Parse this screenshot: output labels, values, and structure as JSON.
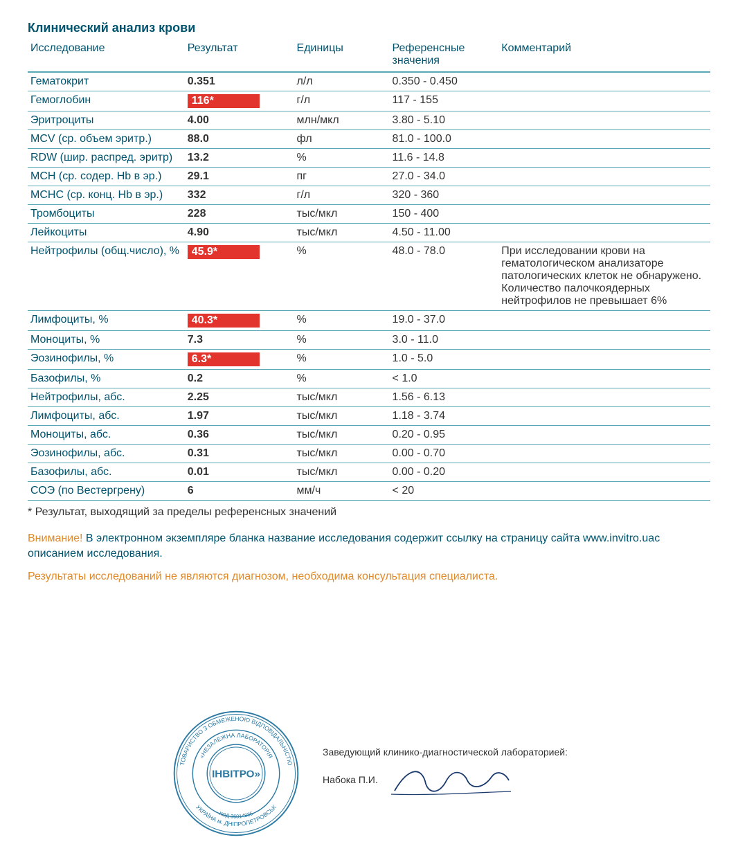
{
  "title": "Клинический анализ крови",
  "columns": [
    "Исследование",
    "Результат",
    "Единицы",
    "Референсные значения",
    "Комментарий"
  ],
  "rows": [
    {
      "test": "Гематокрит",
      "result": "0.351",
      "flag": false,
      "units": "л/л",
      "ref": "0.350 - 0.450",
      "comment": ""
    },
    {
      "test": "Гемоглобин",
      "result": "116*",
      "flag": true,
      "units": "г/л",
      "ref": "117 - 155",
      "comment": ""
    },
    {
      "test": "Эритроциты",
      "result": "4.00",
      "flag": false,
      "units": "млн/мкл",
      "ref": "3.80 - 5.10",
      "comment": ""
    },
    {
      "test": "MCV (ср. объем эритр.)",
      "result": "88.0",
      "flag": false,
      "units": "фл",
      "ref": "81.0 - 100.0",
      "comment": ""
    },
    {
      "test": "RDW (шир. распред. эритр)",
      "result": "13.2",
      "flag": false,
      "units": "%",
      "ref": "11.6 - 14.8",
      "comment": ""
    },
    {
      "test": "MCH (ср. содер. Hb в эр.)",
      "result": "29.1",
      "flag": false,
      "units": "пг",
      "ref": "27.0 - 34.0",
      "comment": ""
    },
    {
      "test": "MCHC (ср. конц. Hb в эр.)",
      "result": "332",
      "flag": false,
      "units": "г/л",
      "ref": "320 - 360",
      "comment": ""
    },
    {
      "test": "Тромбоциты",
      "result": "228",
      "flag": false,
      "units": "тыс/мкл",
      "ref": "150 - 400",
      "comment": ""
    },
    {
      "test": "Лейкоциты",
      "result": "4.90",
      "flag": false,
      "units": "тыс/мкл",
      "ref": "4.50 - 11.00",
      "comment": ""
    },
    {
      "test": "Нейтрофилы (общ.число), %",
      "result": "45.9*",
      "flag": true,
      "units": "%",
      "ref": "48.0 - 78.0",
      "comment": "При исследовании крови на гематологическом анализаторе патологических клеток не обнаружено. Количество палочкоядерных нейтрофилов не превышает 6%"
    },
    {
      "test": "Лимфоциты, %",
      "result": "40.3*",
      "flag": true,
      "units": "%",
      "ref": "19.0 - 37.0",
      "comment": ""
    },
    {
      "test": "Моноциты, %",
      "result": "7.3",
      "flag": false,
      "units": "%",
      "ref": "3.0 - 11.0",
      "comment": ""
    },
    {
      "test": "Эозинофилы, %",
      "result": "6.3*",
      "flag": true,
      "units": "%",
      "ref": "1.0 - 5.0",
      "comment": ""
    },
    {
      "test": "Базофилы, %",
      "result": "0.2",
      "flag": false,
      "units": "%",
      "ref": "< 1.0",
      "comment": ""
    },
    {
      "test": "Нейтрофилы, абс.",
      "result": "2.25",
      "flag": false,
      "units": "тыс/мкл",
      "ref": "1.56 - 6.13",
      "comment": ""
    },
    {
      "test": "Лимфоциты, абс.",
      "result": "1.97",
      "flag": false,
      "units": "тыс/мкл",
      "ref": "1.18 - 3.74",
      "comment": ""
    },
    {
      "test": "Моноциты, абс.",
      "result": "0.36",
      "flag": false,
      "units": "тыс/мкл",
      "ref": "0.20 - 0.95",
      "comment": ""
    },
    {
      "test": "Эозинофилы, абс.",
      "result": "0.31",
      "flag": false,
      "units": "тыс/мкл",
      "ref": "0.00 - 0.70",
      "comment": ""
    },
    {
      "test": "Базофилы, абс.",
      "result": "0.01",
      "flag": false,
      "units": "тыс/мкл",
      "ref": "0.00 - 0.20",
      "comment": ""
    },
    {
      "test": "СОЭ (по Вестергрену)",
      "result": "6",
      "flag": false,
      "units": "мм/ч",
      "ref": "< 20",
      "comment": ""
    }
  ],
  "footnote": "* Результат, выходящий за пределы референсных значений",
  "attention_label": "Внимание!",
  "attention_text": " В электронном экземпляре бланка название исследования содержит ссылку на страницу сайта www.invitro.uaс описанием исследования.",
  "disclaimer": "Результаты исследований не являются диагнозом, необходима консультация специалиста.",
  "stamp": {
    "outer1": "ТОВАРИСТВО З ОБМЕЖЕНОЮ ВІДПОВІДАЛЬНІСТЮ",
    "outer2": "УКРАЇНА м. ДНІПРОПЕТРОВСЬК",
    "code": "КОД 36014835",
    "inner": "«НЕЗАЛЕЖНА ЛАБОРАТОРІЯ",
    "brand": "ІНВІТРО»"
  },
  "signature": {
    "role": "Заведующий клинико-диагностической лабораторией:",
    "name": "Набока П.И."
  },
  "colors": {
    "heading": "#00536e",
    "border": "#5aa7b5",
    "flag_bg": "#e2332d",
    "warn": "#e08a2a",
    "stamp": "#2b7aa3"
  }
}
